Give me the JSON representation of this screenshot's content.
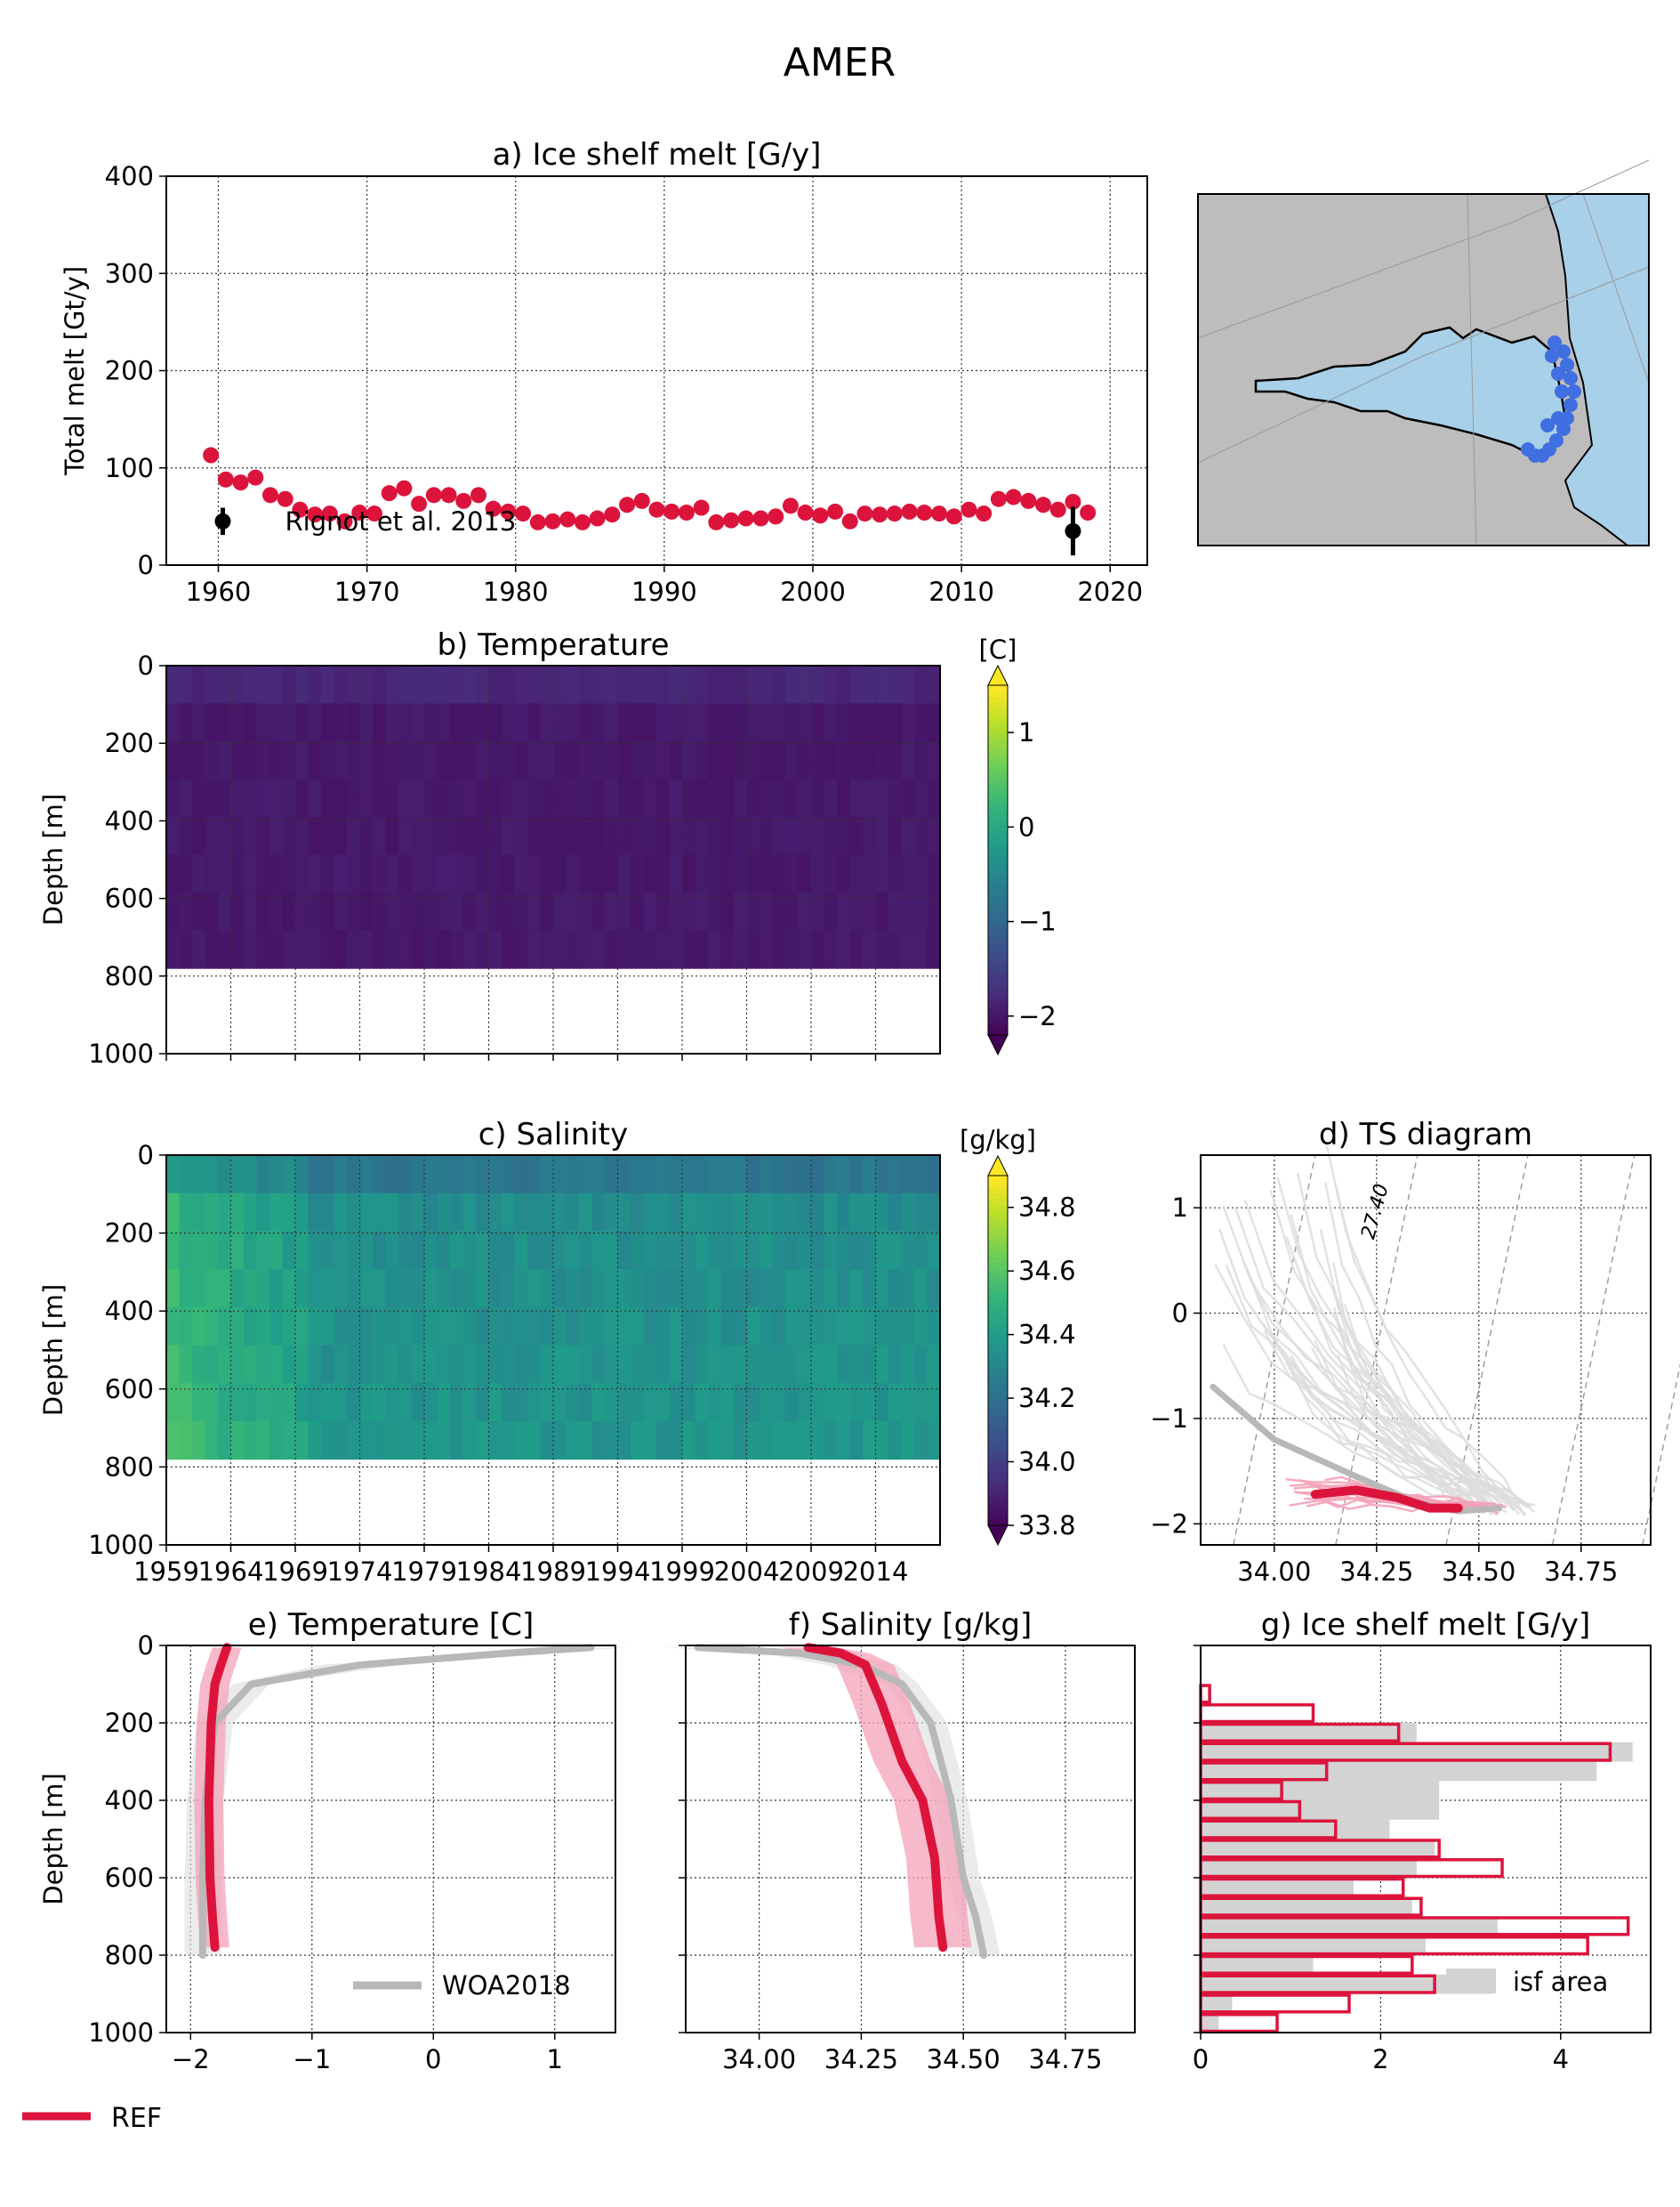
{
  "figure": {
    "title": "AMER"
  },
  "colors": {
    "ref": "#dc143c",
    "ref_light": "#f4a3b8",
    "obs": "#b8b8b8",
    "obs_light": "#dddddd",
    "map_land": "#bdbdbd",
    "map_shelf": "#a8d0e8",
    "map_points": "#3f6fe0",
    "viridis": [
      "#440154",
      "#482878",
      "#3e4989",
      "#31688e",
      "#26828e",
      "#1f9e89",
      "#35b779",
      "#6ece58",
      "#b5de2b",
      "#fde725"
    ]
  },
  "map": {
    "type": "map",
    "icon": "polar-stereographic-map"
  },
  "chart_data": [
    {
      "id": "a",
      "type": "scatter",
      "title": "a) Ice shelf melt [G/y]",
      "ylabel": "Total melt [Gt/y]",
      "xlim": [
        1956.5,
        2022.5
      ],
      "ylim": [
        0,
        400
      ],
      "xticks": [
        1960,
        1970,
        1980,
        1990,
        2000,
        2010,
        2020
      ],
      "yticks": [
        0,
        100,
        200,
        300,
        400
      ],
      "x": [
        1959.5,
        1960.5,
        1961.5,
        1962.5,
        1963.5,
        1964.5,
        1965.5,
        1966.5,
        1967.5,
        1968.5,
        1969.5,
        1970.5,
        1971.5,
        1972.5,
        1973.5,
        1974.5,
        1975.5,
        1976.5,
        1977.5,
        1978.5,
        1979.5,
        1980.5,
        1981.5,
        1982.5,
        1983.5,
        1984.5,
        1985.5,
        1986.5,
        1987.5,
        1988.5,
        1989.5,
        1990.5,
        1991.5,
        1992.5,
        1993.5,
        1994.5,
        1995.5,
        1996.5,
        1997.5,
        1998.5,
        1999.5,
        2000.5,
        2001.5,
        2002.5,
        2003.5,
        2004.5,
        2005.5,
        2006.5,
        2007.5,
        2008.5,
        2009.5,
        2010.5,
        2011.5,
        2012.5,
        2013.5,
        2014.5,
        2015.5,
        2016.5,
        2017.5,
        2018.5
      ],
      "values": [
        113,
        88,
        85,
        90,
        72,
        68,
        57,
        52,
        53,
        45,
        54,
        53,
        74,
        79,
        63,
        72,
        72,
        66,
        72,
        58,
        55,
        53,
        44,
        45,
        47,
        44,
        48,
        52,
        62,
        66,
        57,
        55,
        54,
        59,
        44,
        46,
        48,
        48,
        50,
        61,
        54,
        51,
        55,
        45,
        53,
        52,
        53,
        55,
        54,
        53,
        50,
        57,
        53,
        68,
        70,
        66,
        62,
        57,
        65,
        54
      ],
      "observations": [
        {
          "label": "Rignot et al. 2013",
          "x": 1960.3,
          "value": 45,
          "err": 14
        },
        {
          "label": "",
          "x": 2017.5,
          "value": 35,
          "err": 25
        }
      ]
    },
    {
      "id": "b",
      "type": "heatmap",
      "title": "b) Temperature",
      "ylabel": "Depth [m]",
      "colorbar_label": "[C]",
      "colorbar_ticks": [
        1,
        0,
        -1,
        -2
      ],
      "vmin": -2.2,
      "vmax": 1.5,
      "xlim": [
        1959,
        2019
      ],
      "ylim": [
        1000,
        0
      ],
      "yticks": [
        0,
        200,
        400,
        600,
        800,
        1000
      ],
      "xtick_labels": [],
      "data_depth": 780,
      "typical_value": -1.95
    },
    {
      "id": "c",
      "type": "heatmap",
      "title": "c) Salinity",
      "ylabel": "Depth [m]",
      "colorbar_label": "[g/kg]",
      "colorbar_ticks": [
        34.8,
        34.6,
        34.4,
        34.2,
        34.0,
        33.8
      ],
      "vmin": 33.8,
      "vmax": 34.9,
      "xlim": [
        1959,
        2019
      ],
      "ylim": [
        1000,
        0
      ],
      "yticks": [
        0,
        200,
        400,
        600,
        800,
        1000
      ],
      "xtick_labels": [
        "1959",
        "1964",
        "1969",
        "1974",
        "1979",
        "1984",
        "1989",
        "1994",
        "1999",
        "2004",
        "2009",
        "2014"
      ],
      "data_depth": 780,
      "typical_value": 34.38
    },
    {
      "id": "d",
      "type": "line",
      "title": "d) TS diagram",
      "xlim": [
        33.82,
        34.92
      ],
      "ylim": [
        -2.2,
        1.5
      ],
      "xticks": [
        "34.00",
        "34.25",
        "34.50",
        "34.75"
      ],
      "yticks": [
        "1",
        "0",
        "−1",
        "−2"
      ],
      "isopycnal_label": "27.40",
      "series": [
        {
          "role": "obs",
          "s": [
            33.85,
            34.0,
            34.2,
            34.35,
            34.45,
            34.55
          ],
          "t": [
            -0.7,
            -1.2,
            -1.55,
            -1.8,
            -1.88,
            -1.85
          ]
        },
        {
          "role": "ref",
          "s": [
            34.1,
            34.2,
            34.3,
            34.38,
            34.45
          ],
          "t": [
            -1.72,
            -1.68,
            -1.75,
            -1.85,
            -1.85
          ]
        }
      ]
    },
    {
      "id": "e",
      "type": "line",
      "title": "e) Temperature [C]",
      "ylabel": "Depth [m]",
      "xlim": [
        -2.2,
        1.5
      ],
      "ylim": [
        1000,
        0
      ],
      "xticks": [
        "−2",
        "−1",
        "0",
        "1"
      ],
      "yticks": [
        0,
        200,
        400,
        600,
        800,
        1000
      ],
      "legend": "WOA2018",
      "legend_position": "lower-right",
      "series": [
        {
          "role": "obs",
          "x": [
            1.3,
            0.6,
            -0.6,
            -1.5,
            -1.8,
            -1.88,
            -1.9,
            -1.9,
            -1.9
          ],
          "depth": [
            5,
            20,
            50,
            100,
            200,
            400,
            600,
            700,
            800
          ]
        },
        {
          "role": "ref",
          "x": [
            -1.7,
            -1.75,
            -1.8,
            -1.83,
            -1.85,
            -1.84,
            -1.82,
            -1.8
          ],
          "depth": [
            5,
            50,
            100,
            200,
            400,
            600,
            700,
            780
          ]
        }
      ]
    },
    {
      "id": "f",
      "type": "line",
      "title": "f) Salinity [g/kg]",
      "xlim": [
        33.82,
        34.92
      ],
      "ylim": [
        1000,
        0
      ],
      "xticks": [
        "34.00",
        "34.25",
        "34.50",
        "34.75"
      ],
      "series": [
        {
          "role": "obs",
          "x": [
            33.85,
            34.1,
            34.25,
            34.35,
            34.42,
            34.47,
            34.5,
            34.53,
            34.55
          ],
          "depth": [
            5,
            20,
            50,
            100,
            200,
            400,
            600,
            700,
            800
          ]
        },
        {
          "role": "ref",
          "x": [
            34.12,
            34.2,
            34.26,
            34.3,
            34.35,
            34.4,
            34.43,
            34.44,
            34.45
          ],
          "depth": [
            5,
            20,
            50,
            150,
            300,
            400,
            550,
            700,
            780
          ]
        }
      ]
    },
    {
      "id": "g",
      "type": "bar",
      "title": "g) Ice shelf melt [G/y]",
      "xlim": [
        0,
        5
      ],
      "ylim": [
        1000,
        0
      ],
      "xticks": [
        "0",
        "2",
        "4"
      ],
      "legend": "isf area",
      "bin_edges": [
        100,
        150,
        200,
        250,
        300,
        350,
        400,
        450,
        500,
        550,
        600,
        650,
        700,
        750,
        800,
        850,
        900,
        950,
        1000
      ],
      "ref_values": [
        0.1,
        1.25,
        2.2,
        4.55,
        1.4,
        0.9,
        1.1,
        1.5,
        2.65,
        3.35,
        2.25,
        2.45,
        4.75,
        4.3,
        2.35,
        2.6,
        1.65,
        0.85
      ],
      "area_values": [
        0,
        0,
        2.4,
        4.8,
        4.4,
        2.65,
        2.65,
        2.1,
        2.6,
        2.4,
        1.7,
        2.35,
        3.3,
        2.5,
        1.25,
        3.25,
        0.35,
        0.2
      ]
    }
  ],
  "legend": {
    "ref_label": "REF"
  }
}
